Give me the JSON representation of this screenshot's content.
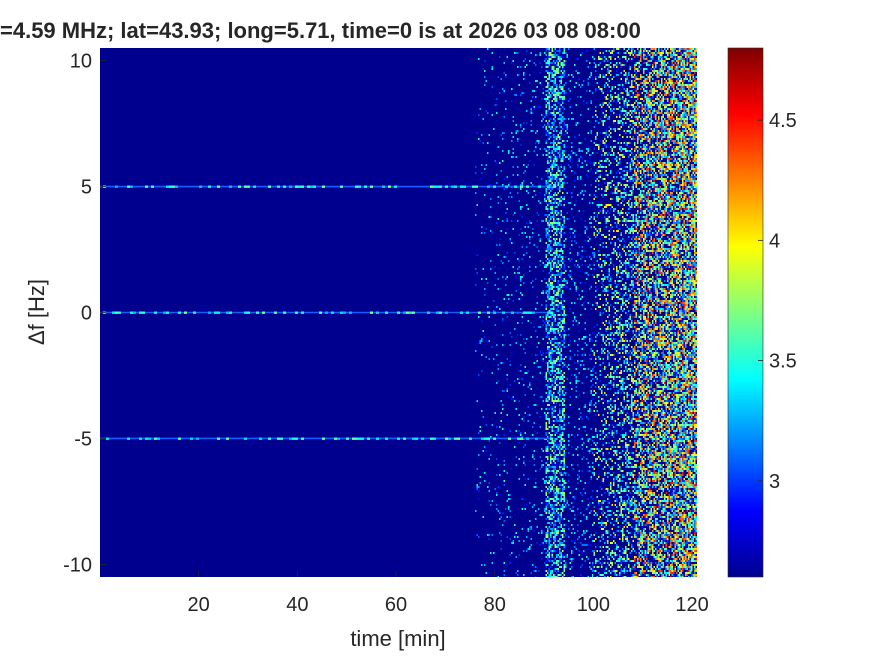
{
  "chart_data": {
    "type": "heatmap",
    "title": "=4.59 MHz;  lat=43.93; long=5.71, time=0 is at 2026 03 08 08:00",
    "xlabel": "time [min]",
    "ylabel": "Δf [Hz]",
    "xlim": [
      0,
      121
    ],
    "ylim": [
      -10.5,
      10.5
    ],
    "xticks": [
      20,
      40,
      60,
      80,
      100,
      120
    ],
    "xtick_labels": [
      "20",
      "40",
      "60",
      "80",
      "100",
      "120"
    ],
    "yticks": [
      -10,
      -5,
      0,
      5,
      10
    ],
    "ytick_labels": [
      "-10",
      "-5",
      "0",
      "5",
      "10"
    ],
    "colorbar": {
      "colormap": "jet",
      "clim": [
        2.6,
        4.8
      ],
      "ticks": [
        3,
        3.5,
        4,
        4.5
      ],
      "tick_labels": [
        "3",
        "3.5",
        "4",
        "4.5"
      ]
    },
    "background_color": "#00008f",
    "features": {
      "horizontal_lines_hz": [
        5,
        0,
        -5
      ],
      "horizontal_lines_time_range_min": [
        0,
        92
      ],
      "vertical_band_min": [
        90,
        94
      ],
      "noisy_region_start_min": 100,
      "strong_noise_region_min": [
        108,
        121
      ]
    }
  }
}
